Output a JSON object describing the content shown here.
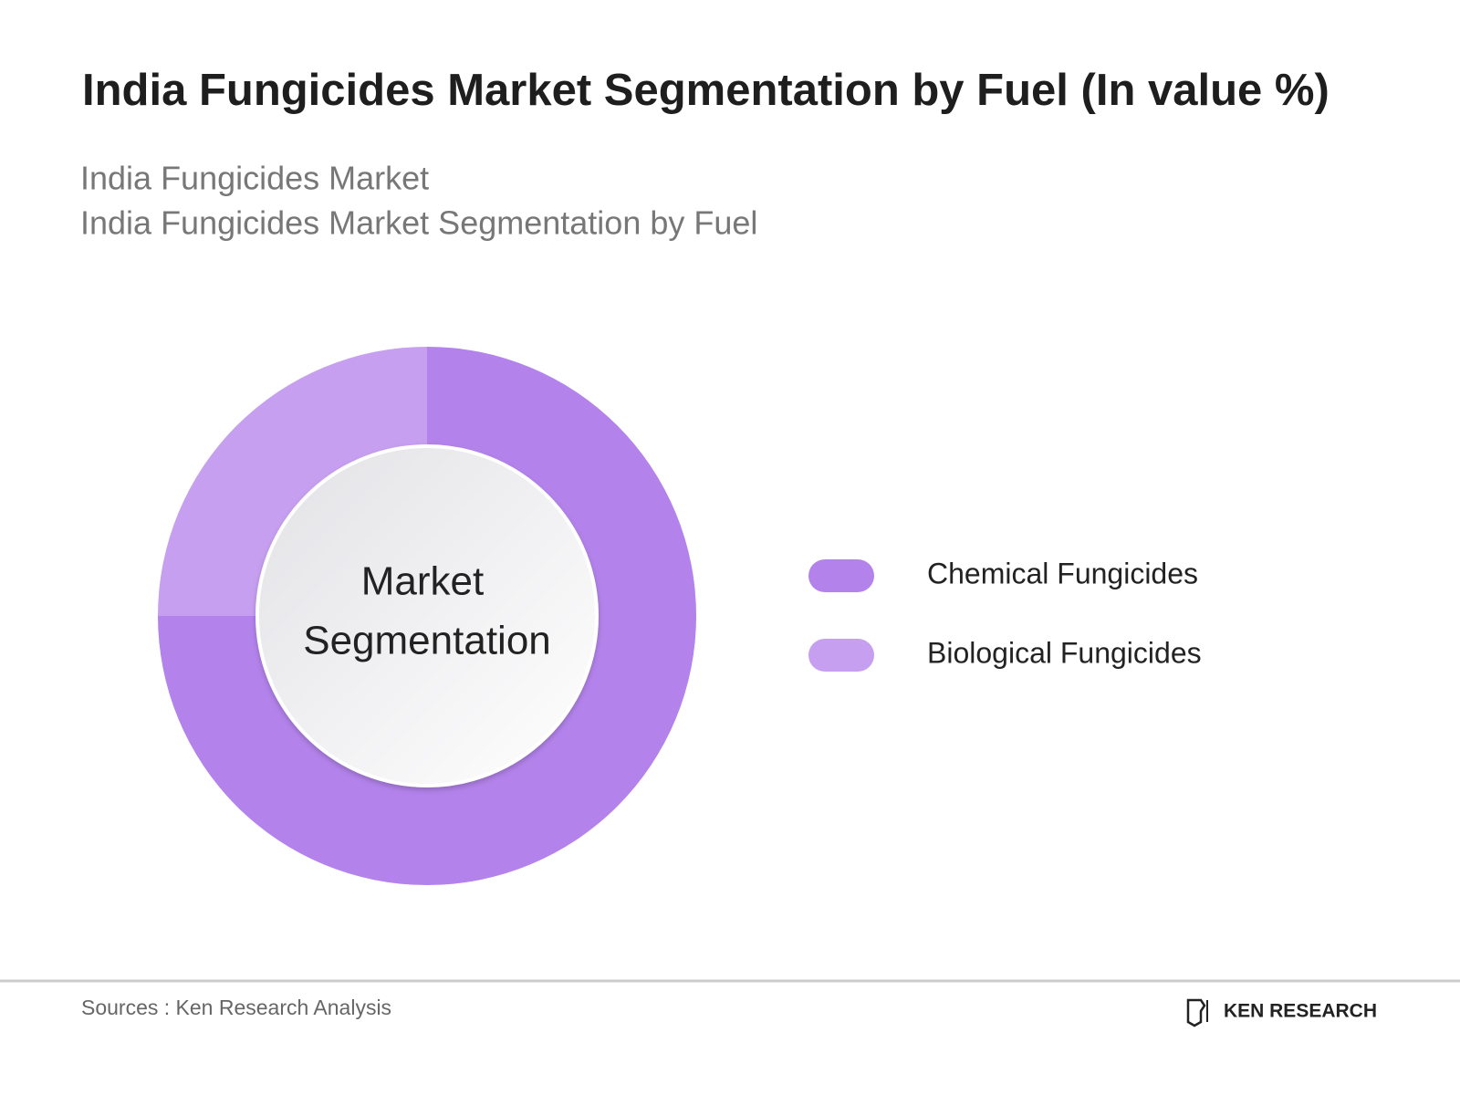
{
  "chart_data": {
    "type": "donut",
    "title": "India Fungicides Market Segmentation by Fuel (In value %)",
    "subtitle": [
      "India Fungicides Market",
      "India Fungicides Market Segmentation by Fuel"
    ],
    "center_label": [
      "Market",
      "Segmentation"
    ],
    "categories": [
      "Chemical Fungicides",
      "Biological Fungicides"
    ],
    "values": [
      75,
      25
    ],
    "colors": [
      "#b383eb",
      "#c79ff0"
    ],
    "source": "Sources : Ken Research Analysis",
    "brand": "KEN RESEARCH"
  }
}
